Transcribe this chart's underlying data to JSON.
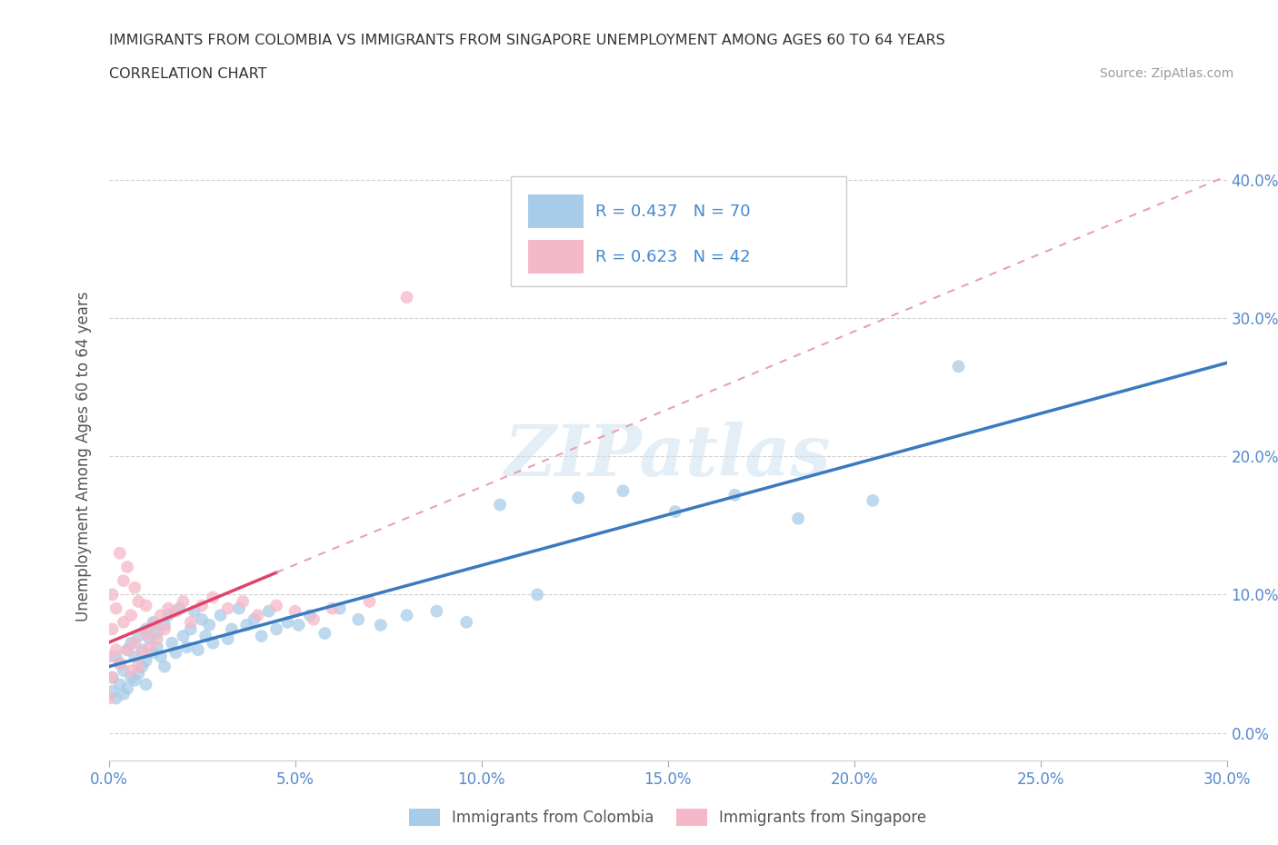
{
  "title_line1": "IMMIGRANTS FROM COLOMBIA VS IMMIGRANTS FROM SINGAPORE UNEMPLOYMENT AMONG AGES 60 TO 64 YEARS",
  "title_line2": "CORRELATION CHART",
  "source_text": "Source: ZipAtlas.com",
  "ylabel": "Unemployment Among Ages 60 to 64 years",
  "watermark": "ZIPatlas",
  "colombia_R": 0.437,
  "colombia_N": 70,
  "singapore_R": 0.623,
  "singapore_N": 42,
  "colombia_color": "#a8cce8",
  "singapore_color": "#f5b8c8",
  "colombia_line_color": "#3a7abf",
  "singapore_line_color": "#e0426a",
  "singapore_line_dashed_color": "#e8a0b8",
  "xlim": [
    0.0,
    0.3
  ],
  "ylim": [
    -0.02,
    0.42
  ],
  "xticks": [
    0.0,
    0.05,
    0.1,
    0.15,
    0.2,
    0.25,
    0.3
  ],
  "yticks": [
    0.0,
    0.1,
    0.2,
    0.3,
    0.4
  ],
  "colombia_x": [
    0.001,
    0.001,
    0.002,
    0.002,
    0.003,
    0.003,
    0.004,
    0.004,
    0.005,
    0.005,
    0.006,
    0.006,
    0.007,
    0.007,
    0.008,
    0.008,
    0.009,
    0.009,
    0.01,
    0.01,
    0.01,
    0.011,
    0.012,
    0.012,
    0.013,
    0.013,
    0.014,
    0.015,
    0.015,
    0.016,
    0.017,
    0.018,
    0.019,
    0.02,
    0.021,
    0.022,
    0.023,
    0.024,
    0.025,
    0.026,
    0.027,
    0.028,
    0.03,
    0.032,
    0.033,
    0.035,
    0.037,
    0.039,
    0.041,
    0.043,
    0.045,
    0.048,
    0.051,
    0.054,
    0.058,
    0.062,
    0.067,
    0.073,
    0.08,
    0.088,
    0.096,
    0.105,
    0.115,
    0.126,
    0.138,
    0.152,
    0.168,
    0.185,
    0.205,
    0.228
  ],
  "colombia_y": [
    0.03,
    0.04,
    0.025,
    0.055,
    0.035,
    0.05,
    0.028,
    0.045,
    0.032,
    0.06,
    0.04,
    0.065,
    0.038,
    0.055,
    0.043,
    0.07,
    0.048,
    0.06,
    0.052,
    0.075,
    0.035,
    0.068,
    0.058,
    0.08,
    0.062,
    0.072,
    0.055,
    0.078,
    0.048,
    0.085,
    0.065,
    0.058,
    0.09,
    0.07,
    0.062,
    0.075,
    0.088,
    0.06,
    0.082,
    0.07,
    0.078,
    0.065,
    0.085,
    0.068,
    0.075,
    0.09,
    0.078,
    0.082,
    0.07,
    0.088,
    0.075,
    0.08,
    0.078,
    0.085,
    0.072,
    0.09,
    0.082,
    0.078,
    0.085,
    0.088,
    0.08,
    0.165,
    0.1,
    0.17,
    0.175,
    0.16,
    0.172,
    0.155,
    0.168,
    0.265
  ],
  "singapore_x": [
    0.0,
    0.0,
    0.001,
    0.001,
    0.001,
    0.002,
    0.002,
    0.003,
    0.003,
    0.004,
    0.004,
    0.005,
    0.005,
    0.006,
    0.006,
    0.007,
    0.007,
    0.008,
    0.008,
    0.009,
    0.01,
    0.01,
    0.011,
    0.012,
    0.013,
    0.014,
    0.015,
    0.016,
    0.018,
    0.02,
    0.022,
    0.025,
    0.028,
    0.032,
    0.036,
    0.04,
    0.045,
    0.05,
    0.055,
    0.06,
    0.07,
    0.08
  ],
  "singapore_y": [
    0.025,
    0.055,
    0.04,
    0.075,
    0.1,
    0.06,
    0.09,
    0.05,
    0.13,
    0.08,
    0.11,
    0.06,
    0.12,
    0.045,
    0.085,
    0.065,
    0.105,
    0.048,
    0.095,
    0.058,
    0.072,
    0.092,
    0.062,
    0.078,
    0.068,
    0.085,
    0.075,
    0.09,
    0.088,
    0.095,
    0.08,
    0.092,
    0.098,
    0.09,
    0.095,
    0.085,
    0.092,
    0.088,
    0.082,
    0.09,
    0.095,
    0.315
  ]
}
